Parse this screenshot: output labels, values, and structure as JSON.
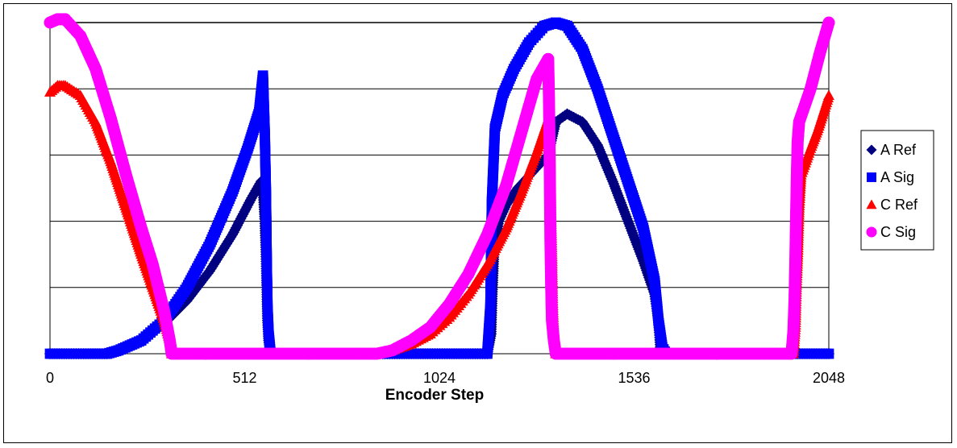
{
  "chart_data": {
    "type": "scatter",
    "title": "",
    "xlabel": "Encoder Step",
    "ylabel": "",
    "x_ticks": [
      "0",
      "512",
      "1024",
      "1536",
      "2048"
    ],
    "xlim": [
      0,
      2048
    ],
    "ylim": [
      0,
      5
    ],
    "y_gridlines": [
      1,
      2,
      3,
      4,
      5
    ],
    "grid": true,
    "legend_position": "right",
    "series": [
      {
        "name": "A Ref",
        "marker": "diamond",
        "color": "#000080",
        "points": [
          [
            0,
            0
          ],
          [
            100,
            0
          ],
          [
            150,
            0
          ],
          [
            180,
            0.05
          ],
          [
            240,
            0.2
          ],
          [
            300,
            0.45
          ],
          [
            360,
            0.8
          ],
          [
            420,
            1.25
          ],
          [
            480,
            1.8
          ],
          [
            530,
            2.35
          ],
          [
            555,
            2.6
          ],
          [
            560,
            2.5
          ],
          [
            565,
            2.0
          ],
          [
            568,
            1.5
          ],
          [
            570,
            1.0
          ],
          [
            572,
            0.5
          ],
          [
            575,
            0.2
          ],
          [
            580,
            0
          ],
          [
            650,
            0
          ],
          [
            800,
            0
          ],
          [
            1000,
            0
          ],
          [
            1150,
            0
          ],
          [
            1160,
            0.3
          ],
          [
            1163,
            0.9
          ],
          [
            1168,
            1.6
          ],
          [
            1180,
            2.0
          ],
          [
            1200,
            2.25
          ],
          [
            1230,
            2.5
          ],
          [
            1270,
            2.75
          ],
          [
            1310,
            3.0
          ],
          [
            1330,
            3.5
          ],
          [
            1360,
            3.62
          ],
          [
            1400,
            3.5
          ],
          [
            1440,
            3.15
          ],
          [
            1480,
            2.6
          ],
          [
            1520,
            2.0
          ],
          [
            1560,
            1.4
          ],
          [
            1590,
            0.9
          ],
          [
            1600,
            0.5
          ],
          [
            1605,
            0.1
          ],
          [
            1620,
            0
          ],
          [
            1800,
            0
          ],
          [
            2048,
            0
          ]
        ]
      },
      {
        "name": "A Sig",
        "marker": "square",
        "color": "#0000ff",
        "points": [
          [
            0,
            0
          ],
          [
            100,
            0
          ],
          [
            150,
            0
          ],
          [
            180,
            0.05
          ],
          [
            240,
            0.2
          ],
          [
            300,
            0.5
          ],
          [
            360,
            1.0
          ],
          [
            420,
            1.65
          ],
          [
            480,
            2.45
          ],
          [
            520,
            3.1
          ],
          [
            550,
            3.65
          ],
          [
            560,
            4.2
          ],
          [
            565,
            3.3
          ],
          [
            568,
            2.4
          ],
          [
            570,
            1.4
          ],
          [
            572,
            0.7
          ],
          [
            575,
            0.3
          ],
          [
            580,
            0
          ],
          [
            650,
            0
          ],
          [
            800,
            0
          ],
          [
            1000,
            0
          ],
          [
            1150,
            0
          ],
          [
            1158,
            0.7
          ],
          [
            1162,
            2.3
          ],
          [
            1170,
            3.4
          ],
          [
            1190,
            3.9
          ],
          [
            1220,
            4.3
          ],
          [
            1260,
            4.7
          ],
          [
            1300,
            4.95
          ],
          [
            1330,
            5.0
          ],
          [
            1360,
            4.95
          ],
          [
            1400,
            4.6
          ],
          [
            1440,
            4.0
          ],
          [
            1480,
            3.3
          ],
          [
            1520,
            2.6
          ],
          [
            1560,
            1.9
          ],
          [
            1590,
            1.1
          ],
          [
            1600,
            0.5
          ],
          [
            1610,
            0.1
          ],
          [
            1620,
            0
          ],
          [
            1800,
            0
          ],
          [
            2000,
            0
          ],
          [
            2048,
            0
          ]
        ]
      },
      {
        "name": "C Ref",
        "marker": "triangle",
        "color": "#ff0000",
        "points": [
          [
            0,
            3.95
          ],
          [
            20,
            4.05
          ],
          [
            40,
            4.05
          ],
          [
            80,
            3.9
          ],
          [
            120,
            3.5
          ],
          [
            160,
            2.9
          ],
          [
            200,
            2.2
          ],
          [
            240,
            1.5
          ],
          [
            270,
            1.0
          ],
          [
            300,
            0.5
          ],
          [
            315,
            0.2
          ],
          [
            320,
            0
          ],
          [
            400,
            0
          ],
          [
            600,
            0
          ],
          [
            800,
            0
          ],
          [
            860,
            0
          ],
          [
            900,
            0.05
          ],
          [
            950,
            0.15
          ],
          [
            1000,
            0.3
          ],
          [
            1050,
            0.55
          ],
          [
            1100,
            0.9
          ],
          [
            1150,
            1.35
          ],
          [
            1200,
            1.9
          ],
          [
            1240,
            2.45
          ],
          [
            1280,
            3.05
          ],
          [
            1310,
            3.55
          ],
          [
            1315,
            2.8
          ],
          [
            1317,
            2.2
          ],
          [
            1320,
            1.5
          ],
          [
            1322,
            0.8
          ],
          [
            1325,
            0.3
          ],
          [
            1330,
            0
          ],
          [
            1400,
            0
          ],
          [
            1600,
            0
          ],
          [
            1900,
            0
          ],
          [
            1955,
            0
          ],
          [
            1960,
            0.4
          ],
          [
            1963,
            1.0
          ],
          [
            1967,
            1.6
          ],
          [
            1970,
            2.2
          ],
          [
            1975,
            2.7
          ],
          [
            2000,
            3.1
          ],
          [
            2020,
            3.4
          ],
          [
            2048,
            3.9
          ]
        ]
      },
      {
        "name": "C Sig",
        "marker": "circle",
        "color": "#ff00ff",
        "points": [
          [
            0,
            5.0
          ],
          [
            20,
            5.05
          ],
          [
            40,
            5.05
          ],
          [
            80,
            4.8
          ],
          [
            120,
            4.3
          ],
          [
            160,
            3.55
          ],
          [
            200,
            2.7
          ],
          [
            240,
            1.9
          ],
          [
            270,
            1.35
          ],
          [
            300,
            0.65
          ],
          [
            315,
            0.2
          ],
          [
            320,
            0
          ],
          [
            400,
            0
          ],
          [
            600,
            0
          ],
          [
            800,
            0
          ],
          [
            860,
            0
          ],
          [
            900,
            0.05
          ],
          [
            950,
            0.2
          ],
          [
            1000,
            0.4
          ],
          [
            1050,
            0.75
          ],
          [
            1100,
            1.2
          ],
          [
            1150,
            1.8
          ],
          [
            1200,
            2.55
          ],
          [
            1240,
            3.35
          ],
          [
            1280,
            4.15
          ],
          [
            1310,
            4.45
          ],
          [
            1312,
            3.9
          ],
          [
            1314,
            3.0
          ],
          [
            1316,
            1.7
          ],
          [
            1318,
            1.0
          ],
          [
            1320,
            0.5
          ],
          [
            1325,
            0.2
          ],
          [
            1330,
            0
          ],
          [
            1400,
            0
          ],
          [
            1600,
            0
          ],
          [
            1900,
            0
          ],
          [
            1950,
            0
          ],
          [
            1955,
            0.35
          ],
          [
            1958,
            0.85
          ],
          [
            1960,
            1.4
          ],
          [
            1962,
            2.1
          ],
          [
            1964,
            2.7
          ],
          [
            1966,
            3.2
          ],
          [
            1970,
            3.5
          ],
          [
            2000,
            4.0
          ],
          [
            2025,
            4.55
          ],
          [
            2048,
            5.0
          ]
        ]
      }
    ]
  }
}
